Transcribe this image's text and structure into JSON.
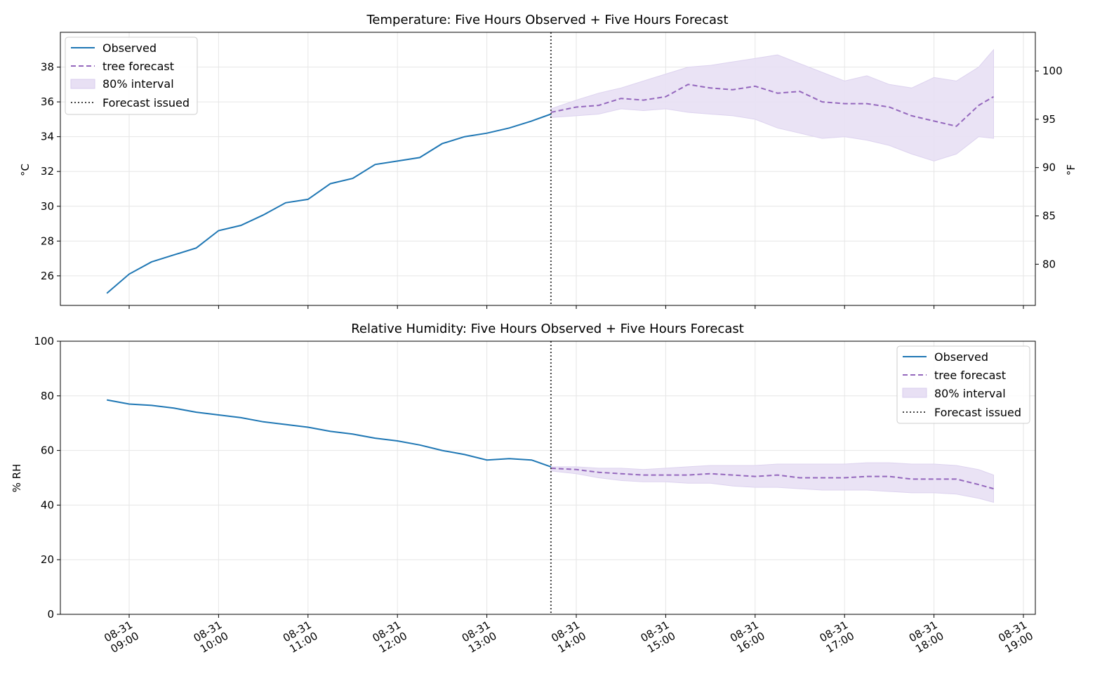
{
  "chart_data": [
    {
      "type": "line",
      "title": "Temperature: Five Hours Observed + Five Hours Forecast",
      "ylabel": "°C",
      "ylabel_right": "°F",
      "ylim": [
        24.3,
        40.0
      ],
      "yticks": [
        26,
        28,
        30,
        32,
        34,
        36,
        38
      ],
      "yticks_right": [
        80,
        85,
        90,
        95,
        100
      ],
      "grid": true,
      "legend_position": "top-left",
      "legend": [
        "Observed",
        "tree forecast",
        "80% interval",
        "Forecast issued"
      ],
      "forecast_issued": "08-31 13:43",
      "series": [
        {
          "name": "Observed",
          "x": [
            "08-31 08:45",
            "08-31 09:00",
            "08-31 09:15",
            "08-31 09:30",
            "08-31 09:45",
            "08-31 10:00",
            "08-31 10:15",
            "08-31 10:30",
            "08-31 10:45",
            "08-31 11:00",
            "08-31 11:15",
            "08-31 11:30",
            "08-31 11:45",
            "08-31 12:00",
            "08-31 12:15",
            "08-31 12:30",
            "08-31 12:45",
            "08-31 13:00",
            "08-31 13:15",
            "08-31 13:30",
            "08-31 13:43"
          ],
          "values": [
            25.0,
            26.1,
            26.8,
            27.2,
            27.6,
            28.6,
            28.9,
            29.5,
            30.2,
            30.4,
            31.3,
            31.6,
            32.4,
            32.6,
            32.8,
            33.6,
            34.0,
            34.2,
            34.5,
            34.9,
            35.3
          ]
        },
        {
          "name": "tree forecast",
          "x": [
            "08-31 13:43",
            "08-31 14:00",
            "08-31 14:15",
            "08-31 14:30",
            "08-31 14:45",
            "08-31 15:00",
            "08-31 15:15",
            "08-31 15:30",
            "08-31 15:45",
            "08-31 16:00",
            "08-31 16:15",
            "08-31 16:30",
            "08-31 16:45",
            "08-31 17:00",
            "08-31 17:15",
            "08-31 17:30",
            "08-31 17:45",
            "08-31 18:00",
            "08-31 18:15",
            "08-31 18:30",
            "08-31 18:40"
          ],
          "values": [
            35.4,
            35.7,
            35.8,
            36.2,
            36.1,
            36.3,
            37.0,
            36.8,
            36.7,
            36.9,
            36.5,
            36.6,
            36.0,
            35.9,
            35.9,
            35.7,
            35.2,
            34.9,
            34.6,
            35.8,
            36.3
          ],
          "lower": [
            35.1,
            35.2,
            35.3,
            35.6,
            35.5,
            35.6,
            35.4,
            35.3,
            35.2,
            35.0,
            34.5,
            34.2,
            33.9,
            34.0,
            33.8,
            33.5,
            33.0,
            32.6,
            33.0,
            34.0,
            33.9
          ],
          "upper": [
            35.6,
            36.1,
            36.5,
            36.8,
            37.2,
            37.6,
            38.0,
            38.1,
            38.3,
            38.5,
            38.7,
            38.2,
            37.7,
            37.2,
            37.5,
            37.0,
            36.8,
            37.4,
            37.2,
            38.0,
            39.0
          ]
        }
      ]
    },
    {
      "type": "line",
      "title": "Relative Humidity: Five Hours Observed + Five Hours Forecast",
      "ylabel": "% RH",
      "ylim": [
        0,
        100
      ],
      "yticks": [
        0,
        20,
        40,
        60,
        80,
        100
      ],
      "xticks": [
        "08-31 09:00",
        "08-31 10:00",
        "08-31 11:00",
        "08-31 12:00",
        "08-31 13:00",
        "08-31 14:00",
        "08-31 15:00",
        "08-31 16:00",
        "08-31 17:00",
        "08-31 18:00",
        "08-31 19:00"
      ],
      "grid": true,
      "legend_position": "top-right",
      "legend": [
        "Observed",
        "tree forecast",
        "80% interval",
        "Forecast issued"
      ],
      "forecast_issued": "08-31 13:43",
      "series": [
        {
          "name": "Observed",
          "x": [
            "08-31 08:45",
            "08-31 09:00",
            "08-31 09:15",
            "08-31 09:30",
            "08-31 09:45",
            "08-31 10:00",
            "08-31 10:15",
            "08-31 10:30",
            "08-31 10:45",
            "08-31 11:00",
            "08-31 11:15",
            "08-31 11:30",
            "08-31 11:45",
            "08-31 12:00",
            "08-31 12:15",
            "08-31 12:30",
            "08-31 12:45",
            "08-31 13:00",
            "08-31 13:15",
            "08-31 13:30",
            "08-31 13:43"
          ],
          "values": [
            78.5,
            77.0,
            76.5,
            75.5,
            74.0,
            73.0,
            72.0,
            70.5,
            69.5,
            68.5,
            67.0,
            66.0,
            64.5,
            63.5,
            62.0,
            60.0,
            58.5,
            56.5,
            57.0,
            56.5,
            54.0
          ]
        },
        {
          "name": "tree forecast",
          "x": [
            "08-31 13:43",
            "08-31 14:00",
            "08-31 14:15",
            "08-31 14:30",
            "08-31 14:45",
            "08-31 15:00",
            "08-31 15:15",
            "08-31 15:30",
            "08-31 15:45",
            "08-31 16:00",
            "08-31 16:15",
            "08-31 16:30",
            "08-31 16:45",
            "08-31 17:00",
            "08-31 17:15",
            "08-31 17:30",
            "08-31 17:45",
            "08-31 18:00",
            "08-31 18:15",
            "08-31 18:30",
            "08-31 18:40"
          ],
          "values": [
            53.5,
            53.0,
            52.0,
            51.5,
            51.0,
            51.0,
            51.0,
            51.5,
            51.0,
            50.5,
            51.0,
            50.0,
            50.0,
            50.0,
            50.5,
            50.5,
            49.5,
            49.5,
            49.5,
            47.5,
            46.0
          ],
          "lower": [
            52.5,
            51.5,
            50.0,
            49.0,
            48.5,
            48.5,
            48.0,
            48.0,
            47.0,
            46.5,
            46.5,
            46.0,
            45.5,
            45.5,
            45.5,
            45.0,
            44.5,
            44.5,
            44.0,
            42.5,
            41.0
          ],
          "upper": [
            54.0,
            54.0,
            53.5,
            53.5,
            53.0,
            53.5,
            54.0,
            54.5,
            54.5,
            54.5,
            55.0,
            55.0,
            55.0,
            55.0,
            55.5,
            55.5,
            55.0,
            55.0,
            54.5,
            53.0,
            51.0
          ]
        }
      ]
    }
  ],
  "colors": {
    "observed": "#1f77b4",
    "forecast": "#9467bd",
    "interval": "#e8e0f4",
    "issued": "#444444"
  }
}
